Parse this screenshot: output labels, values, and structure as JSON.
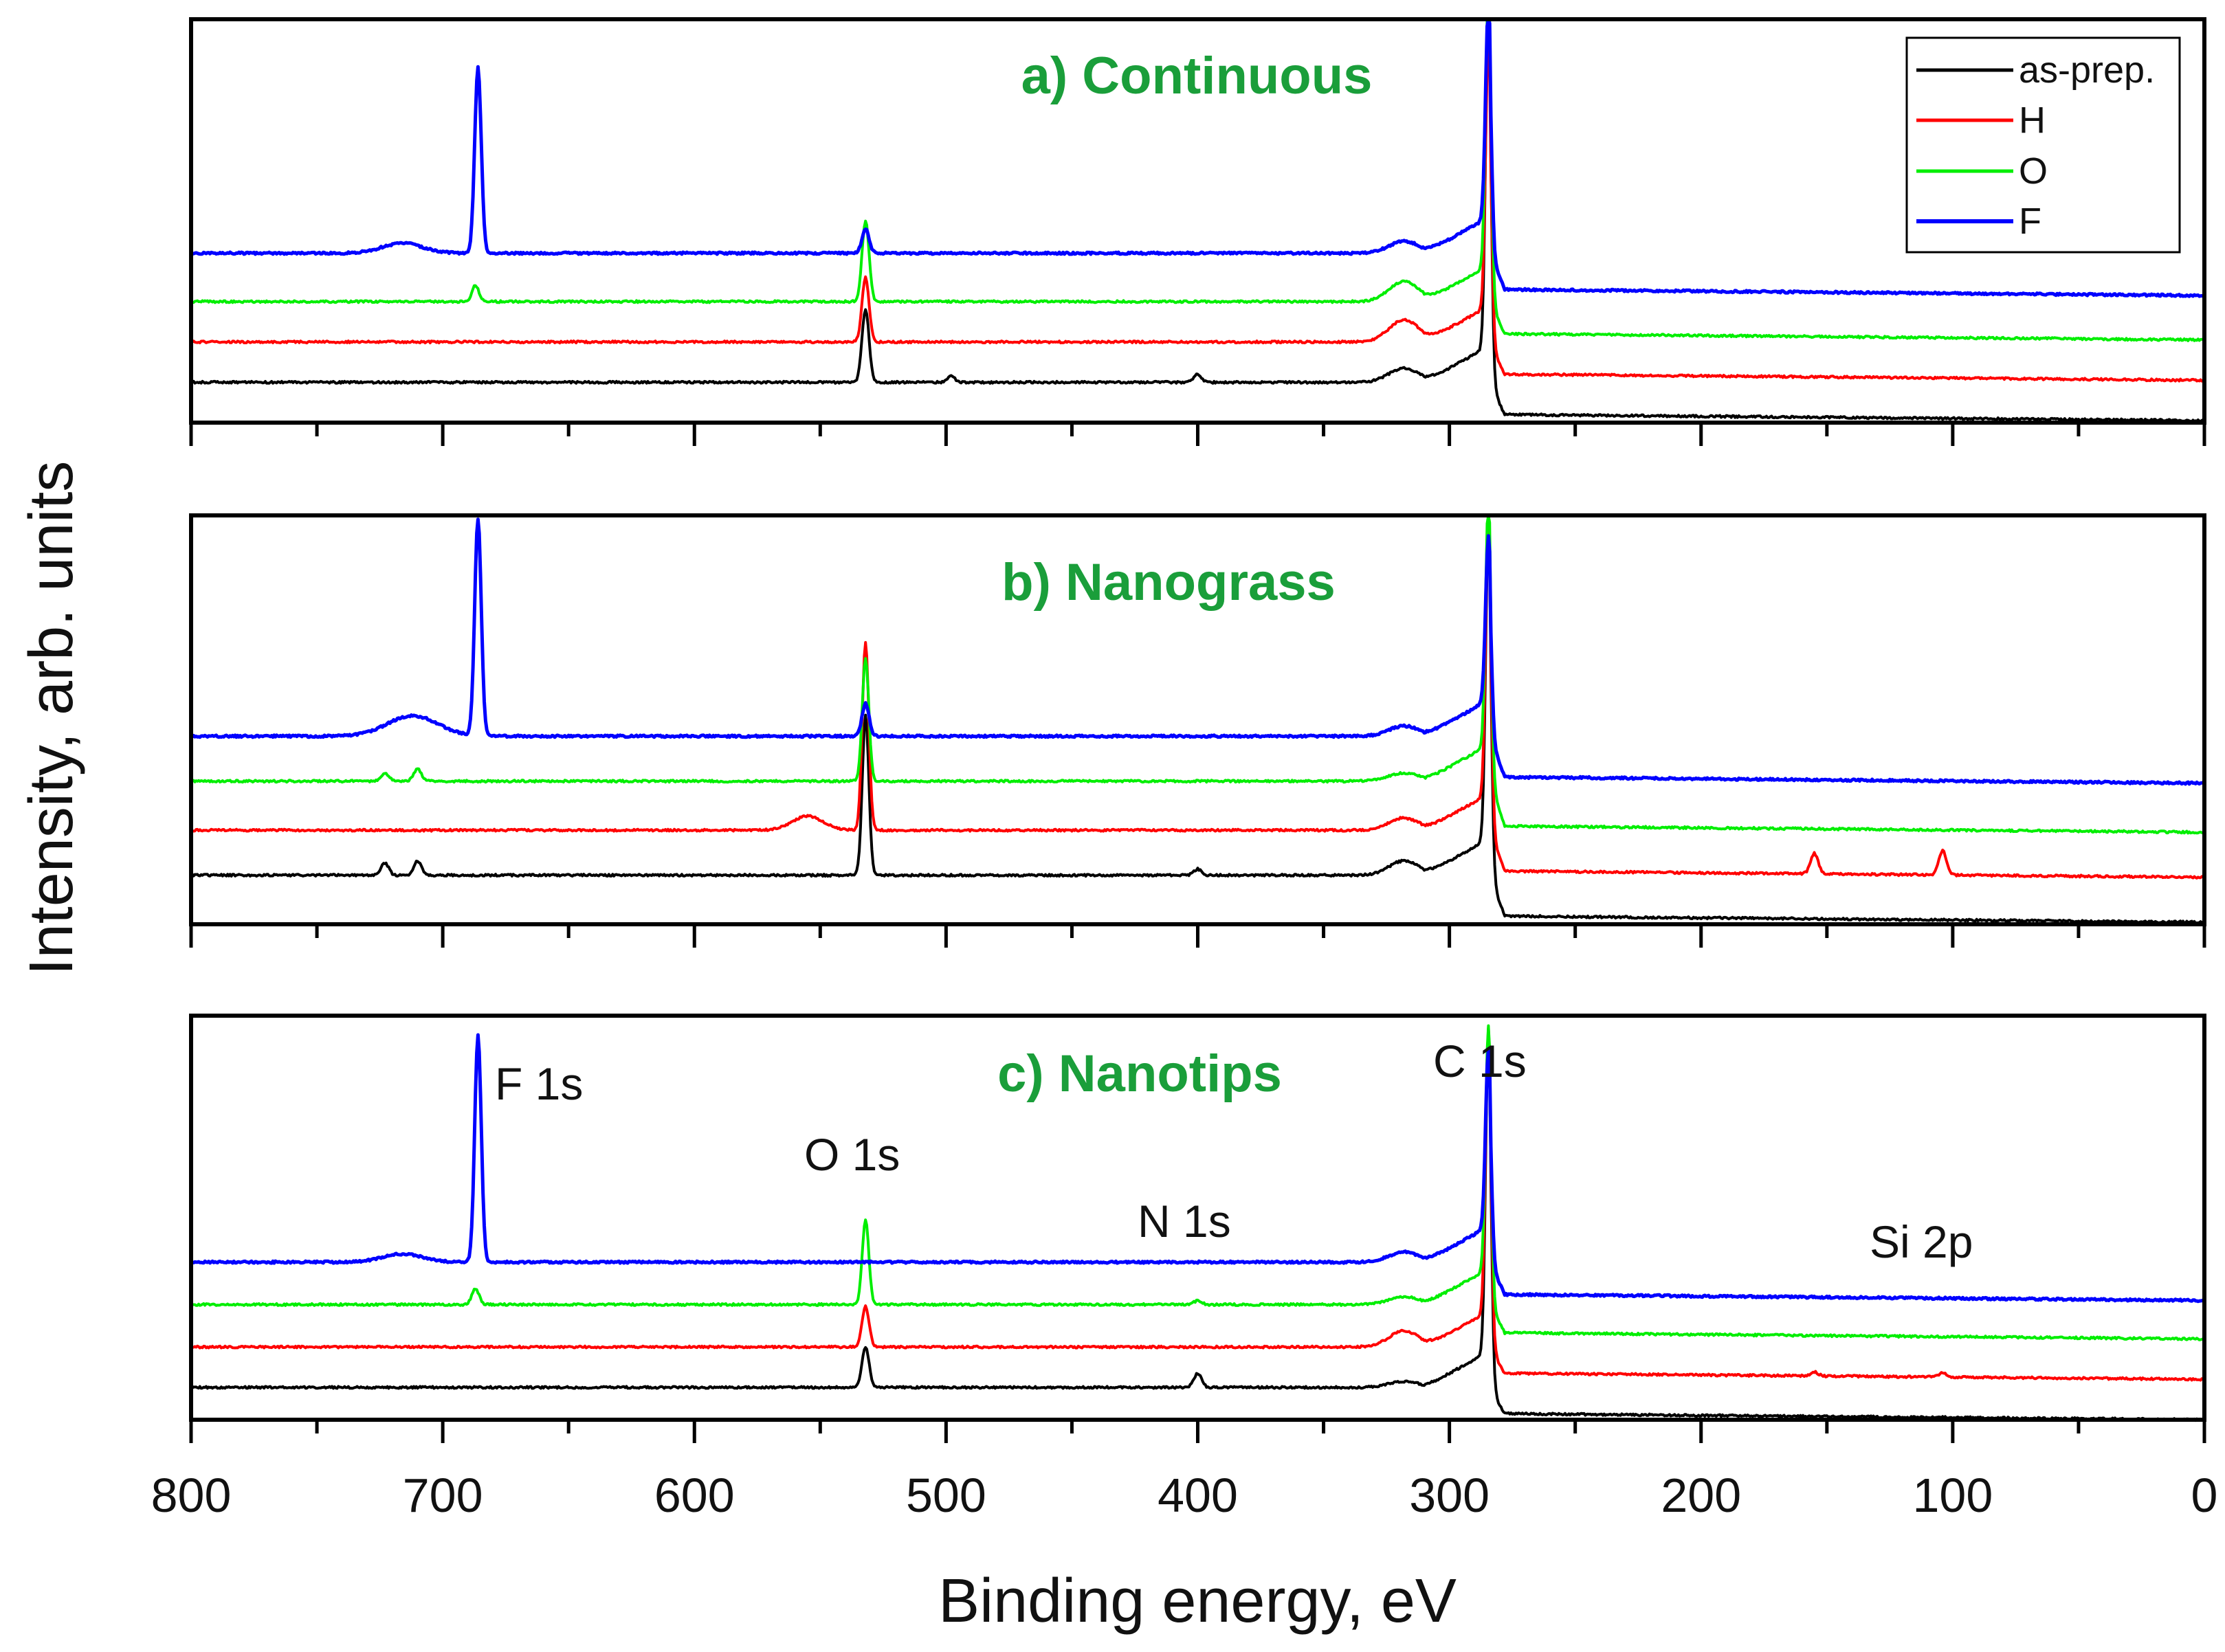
{
  "chart_data": {
    "type": "line",
    "x_axis": {
      "label": "Binding energy, eV",
      "xlim": [
        800,
        0
      ],
      "reversed": true,
      "major_ticks": [
        800,
        700,
        600,
        500,
        400,
        300,
        200,
        100,
        0
      ],
      "tick_labels": [
        "800",
        "700",
        "600",
        "500",
        "400",
        "300",
        "200",
        "100",
        "0"
      ],
      "minor_tick_step": 50
    },
    "y_axis": {
      "label": "Intensity, arb. units",
      "ticks_shown": false
    },
    "legend": {
      "placement": "top-right of panel a",
      "entries": [
        {
          "label": "as-prep.",
          "color": "#000000"
        },
        {
          "label": "H",
          "color": "#ff0000"
        },
        {
          "label": "O",
          "color": "#00ee00"
        },
        {
          "label": "F",
          "color": "#0000ff"
        }
      ]
    },
    "title_color": "#1a9e3a",
    "peak_labels": [
      {
        "label": "F 1s",
        "energy": 686
      },
      {
        "label": "O 1s",
        "energy": 532
      },
      {
        "label": "N 1s",
        "energy": 400
      },
      {
        "label": "C 1s",
        "energy": 284.5
      },
      {
        "label": "Si 2p",
        "energy": 100
      }
    ],
    "panels": [
      {
        "title": "a) Continuous",
        "ylim": [
          0,
          10
        ],
        "series": [
          {
            "name": "as-prep.",
            "color": "#000000",
            "high_baseline": 1.0,
            "low_baseline": 0.2,
            "peaks": [
              {
                "energy": 532,
                "height": 1.8,
                "width": 1.4
              },
              {
                "energy": 498,
                "height": 0.15,
                "width": 1.5
              },
              {
                "energy": 400,
                "height": 0.2,
                "width": 1.5
              },
              {
                "energy": 318,
                "height": 0.35,
                "width": 6
              },
              {
                "energy": 284.5,
                "height": 8.3,
                "width": 1.1
              }
            ]
          },
          {
            "name": "H",
            "color": "#ff0000",
            "high_baseline": 2.0,
            "low_baseline": 1.2,
            "peaks": [
              {
                "energy": 532,
                "height": 1.6,
                "width": 1.4
              },
              {
                "energy": 318,
                "height": 0.55,
                "width": 6
              },
              {
                "energy": 284.5,
                "height": 6.5,
                "width": 1.1
              }
            ]
          },
          {
            "name": "O",
            "color": "#00ee00",
            "high_baseline": 3.0,
            "low_baseline": 2.2,
            "peaks": [
              {
                "energy": 687,
                "height": 0.4,
                "width": 1.4
              },
              {
                "energy": 532,
                "height": 2.0,
                "width": 1.4
              },
              {
                "energy": 318,
                "height": 0.5,
                "width": 6
              },
              {
                "energy": 284.5,
                "height": 7.0,
                "width": 1.1
              }
            ]
          },
          {
            "name": "F",
            "color": "#0000ff",
            "high_baseline": 4.2,
            "low_baseline": 3.3,
            "peaks": [
              {
                "energy": 716,
                "height": 0.25,
                "width": 8
              },
              {
                "energy": 686,
                "height": 4.6,
                "width": 1.3
              },
              {
                "energy": 532,
                "height": 0.6,
                "width": 1.4
              },
              {
                "energy": 318,
                "height": 0.3,
                "width": 6
              },
              {
                "energy": 284.5,
                "height": 5.3,
                "width": 1.1
              }
            ]
          }
        ]
      },
      {
        "title": "b) Nanograss",
        "ylim": [
          0,
          10
        ],
        "series": [
          {
            "name": "as-prep.",
            "color": "#000000",
            "high_baseline": 1.2,
            "low_baseline": 0.2,
            "peaks": [
              {
                "energy": 723,
                "height": 0.3,
                "width": 1.5
              },
              {
                "energy": 710,
                "height": 0.35,
                "width": 1.5
              },
              {
                "energy": 532,
                "height": 3.9,
                "width": 1.3
              },
              {
                "energy": 400,
                "height": 0.15,
                "width": 1.5
              },
              {
                "energy": 318,
                "height": 0.35,
                "width": 6
              },
              {
                "energy": 284.5,
                "height": 7.5,
                "width": 1.1
              }
            ]
          },
          {
            "name": "H",
            "color": "#ff0000",
            "high_baseline": 2.3,
            "low_baseline": 1.3,
            "peaks": [
              {
                "energy": 555,
                "height": 0.35,
                "width": 6
              },
              {
                "energy": 532,
                "height": 4.6,
                "width": 1.3
              },
              {
                "energy": 318,
                "height": 0.3,
                "width": 6
              },
              {
                "energy": 284.5,
                "height": 6.5,
                "width": 1.1
              },
              {
                "energy": 155,
                "height": 0.5,
                "width": 1.5
              },
              {
                "energy": 104,
                "height": 0.6,
                "width": 1.5
              }
            ]
          },
          {
            "name": "O",
            "color": "#00ee00",
            "high_baseline": 3.5,
            "low_baseline": 2.4,
            "peaks": [
              {
                "energy": 723,
                "height": 0.2,
                "width": 1.5
              },
              {
                "energy": 710,
                "height": 0.3,
                "width": 1.5
              },
              {
                "energy": 532,
                "height": 3.0,
                "width": 1.3
              },
              {
                "energy": 318,
                "height": 0.2,
                "width": 6
              },
              {
                "energy": 284.5,
                "height": 6.0,
                "width": 1.1
              }
            ]
          },
          {
            "name": "F",
            "color": "#0000ff",
            "high_baseline": 4.6,
            "low_baseline": 3.6,
            "peaks": [
              {
                "energy": 712,
                "height": 0.5,
                "width": 10
              },
              {
                "energy": 686,
                "height": 5.3,
                "width": 1.3
              },
              {
                "energy": 532,
                "height": 0.8,
                "width": 1.4
              },
              {
                "energy": 318,
                "height": 0.25,
                "width": 6
              },
              {
                "energy": 284.5,
                "height": 4.0,
                "width": 1.1
              }
            ]
          }
        ]
      },
      {
        "title": "c) Nanotips",
        "ylim": [
          0,
          10
        ],
        "series": [
          {
            "name": "as-prep.",
            "color": "#000000",
            "high_baseline": 0.8,
            "low_baseline": 0.15,
            "peaks": [
              {
                "energy": 532,
                "height": 1.0,
                "width": 1.4
              },
              {
                "energy": 400,
                "height": 0.35,
                "width": 1.5
              },
              {
                "energy": 318,
                "height": 0.15,
                "width": 6
              },
              {
                "energy": 284.5,
                "height": 7.8,
                "width": 1.1
              }
            ]
          },
          {
            "name": "H",
            "color": "#ff0000",
            "high_baseline": 1.8,
            "low_baseline": 1.15,
            "peaks": [
              {
                "energy": 532,
                "height": 1.0,
                "width": 1.4
              },
              {
                "energy": 318,
                "height": 0.4,
                "width": 6
              },
              {
                "energy": 284.5,
                "height": 7.0,
                "width": 1.1
              },
              {
                "energy": 155,
                "height": 0.1,
                "width": 1.5
              },
              {
                "energy": 104,
                "height": 0.1,
                "width": 1.5
              }
            ]
          },
          {
            "name": "O",
            "color": "#00ee00",
            "high_baseline": 2.85,
            "low_baseline": 2.15,
            "peaks": [
              {
                "energy": 687,
                "height": 0.4,
                "width": 1.4
              },
              {
                "energy": 532,
                "height": 2.1,
                "width": 1.3
              },
              {
                "energy": 400,
                "height": 0.1,
                "width": 1.5
              },
              {
                "energy": 318,
                "height": 0.2,
                "width": 6
              },
              {
                "energy": 284.5,
                "height": 6.0,
                "width": 1.1
              }
            ]
          },
          {
            "name": "F",
            "color": "#0000ff",
            "high_baseline": 3.9,
            "low_baseline": 3.1,
            "peaks": [
              {
                "energy": 716,
                "height": 0.2,
                "width": 8
              },
              {
                "energy": 686,
                "height": 5.6,
                "width": 1.3
              },
              {
                "energy": 532,
                "height": 0.0,
                "width": 1.4
              },
              {
                "energy": 318,
                "height": 0.25,
                "width": 6
              },
              {
                "energy": 284.5,
                "height": 4.4,
                "width": 1.1
              }
            ]
          }
        ]
      }
    ]
  }
}
